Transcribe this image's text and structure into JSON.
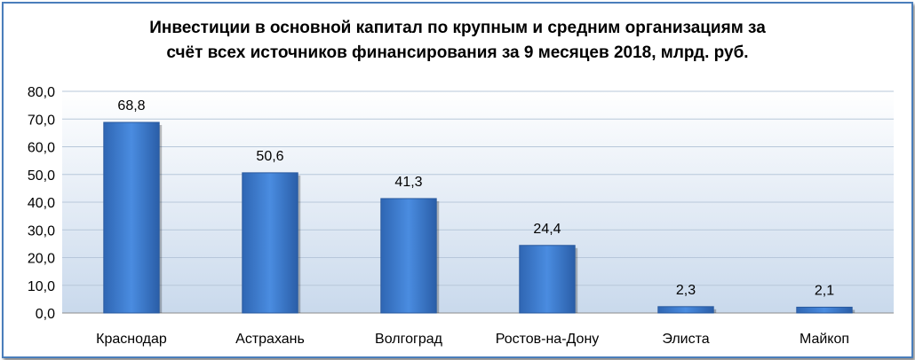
{
  "chart_data": {
    "type": "bar",
    "title_line1": "Инвестиции в основной капитал по крупным и средним организациям за",
    "title_line2": "счёт всех источников финансирования за 9 месяцев 2018, млрд. руб.",
    "categories": [
      "Краснодар",
      "Астрахань",
      "Волгоград",
      "Ростов-на-Дону",
      "Элиста",
      "Майкоп"
    ],
    "values": [
      68.8,
      50.6,
      41.3,
      24.4,
      2.3,
      2.1
    ],
    "value_labels": [
      "68,8",
      "50,6",
      "41,3",
      "24,4",
      "2,3",
      "2,1"
    ],
    "yticks": [
      0,
      10,
      20,
      30,
      40,
      50,
      60,
      70,
      80
    ],
    "ytick_labels": [
      "0,0",
      "10,0",
      "20,0",
      "30,0",
      "40,0",
      "50,0",
      "60,0",
      "70,0",
      "80,0"
    ],
    "ylim": [
      0,
      80
    ],
    "grid": true,
    "legend": "none",
    "bar_color": "#3f7fd0"
  }
}
